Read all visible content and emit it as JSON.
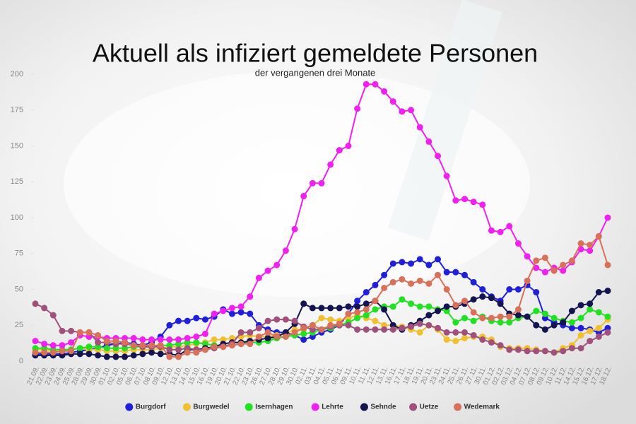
{
  "chart_data": {
    "type": "line",
    "title": "Aktuell als infiziert gemeldete Personen",
    "subtitle": "der vergangenen drei Monate",
    "categories": [
      "21.09.",
      "22.09.",
      "23.09.",
      "24.09.",
      "25.09.",
      "28.09.",
      "29.09.",
      "30.09.",
      "01.10.",
      "02.10.",
      "05.10.",
      "06.10.",
      "07.10.",
      "08.10.",
      "09.10.",
      "12.10.",
      "13.10.",
      "14.10.",
      "15.10.",
      "16.10.",
      "19.10.",
      "20.10.",
      "21.10.",
      "22.10.",
      "23.10.",
      "26.10.",
      "27.10.",
      "28.10.",
      "29.10.",
      "30.10.",
      "02.11.",
      "03.11.",
      "04.11.",
      "05.11.",
      "06.11.",
      "09.11.",
      "10.11.",
      "11.11.",
      "12.11.",
      "13.11.",
      "16.11.",
      "17.11.",
      "18.11.",
      "19.11.",
      "20.11.",
      "23.11.",
      "24.11.",
      "25.11.",
      "26.11.",
      "27.11.",
      "30.11.",
      "01.12.",
      "02.12.",
      "03.12.",
      "04.12.",
      "07.12.",
      "08.12.",
      "09.12.",
      "10.12.",
      "11.12.",
      "14.12.",
      "15.12.",
      "16.12.",
      "17.12.",
      "18.12."
    ],
    "series": [
      {
        "name": "Burgdorf",
        "color": "#1f1fdc",
        "values": [
          5,
          5,
          5,
          5,
          6,
          7,
          8,
          9,
          11,
          12,
          13,
          12,
          11,
          13,
          17,
          25,
          28,
          28,
          30,
          29,
          31,
          36,
          33,
          34,
          33,
          25,
          22,
          20,
          20,
          18,
          15,
          17,
          20,
          22,
          25,
          33,
          42,
          48,
          53,
          60,
          68,
          69,
          68,
          71,
          67,
          71,
          62,
          62,
          60,
          55,
          50,
          45,
          42,
          50,
          50,
          53,
          48,
          30,
          27,
          25,
          23,
          23,
          22,
          20,
          23
        ]
      },
      {
        "name": "Burgwedel",
        "color": "#f0c030",
        "values": [
          8,
          8,
          7,
          7,
          8,
          9,
          8,
          8,
          7,
          7,
          7,
          8,
          8,
          8,
          9,
          10,
          10,
          11,
          12,
          13,
          15,
          15,
          16,
          17,
          18,
          17,
          17,
          18,
          19,
          22,
          22,
          25,
          30,
          29,
          28,
          30,
          32,
          30,
          28,
          25,
          25,
          24,
          22,
          20,
          25,
          22,
          15,
          14,
          16,
          17,
          17,
          15,
          10,
          9,
          9,
          9,
          8,
          7,
          6,
          9,
          11,
          18,
          21,
          23,
          29
        ]
      },
      {
        "name": "Isernhagen",
        "color": "#22e022",
        "values": [
          9,
          9,
          8,
          8,
          8,
          9,
          10,
          10,
          9,
          9,
          9,
          10,
          10,
          10,
          11,
          11,
          12,
          13,
          13,
          12,
          11,
          11,
          11,
          12,
          13,
          13,
          14,
          16,
          17,
          18,
          19,
          20,
          22,
          23,
          25,
          27,
          30,
          32,
          36,
          38,
          38,
          43,
          40,
          38,
          38,
          36,
          35,
          27,
          30,
          28,
          31,
          28,
          27,
          27,
          30,
          31,
          35,
          33,
          30,
          28,
          27,
          30,
          36,
          34,
          31
        ]
      },
      {
        "name": "Lehrte",
        "color": "#f020f0",
        "values": [
          14,
          12,
          11,
          11,
          13,
          18,
          17,
          17,
          16,
          16,
          16,
          16,
          15,
          15,
          15,
          15,
          15,
          16,
          17,
          19,
          33,
          35,
          37,
          38,
          45,
          58,
          63,
          67,
          77,
          92,
          115,
          124,
          124,
          137,
          147,
          150,
          176,
          193,
          193,
          188,
          181,
          174,
          175,
          163,
          153,
          143,
          129,
          112,
          113,
          111,
          109,
          91,
          90,
          94,
          82,
          73,
          65,
          62,
          65,
          63,
          69,
          78,
          77,
          87,
          100
        ]
      },
      {
        "name": "Sehnde",
        "color": "#141450",
        "values": [
          4,
          4,
          4,
          4,
          5,
          5,
          5,
          4,
          3,
          3,
          3,
          4,
          5,
          6,
          5,
          5,
          4,
          8,
          8,
          9,
          10,
          12,
          13,
          13,
          14,
          15,
          16,
          17,
          20,
          26,
          40,
          37,
          37,
          37,
          37,
          38,
          38,
          40,
          42,
          36,
          25,
          22,
          25,
          28,
          32,
          35,
          38,
          38,
          40,
          43,
          45,
          44,
          40,
          33,
          32,
          31,
          25,
          22,
          25,
          27,
          35,
          39,
          40,
          48,
          49
        ]
      },
      {
        "name": "Uetze",
        "color": "#a0507a",
        "values": [
          40,
          37,
          32,
          21,
          21,
          20,
          20,
          13,
          13,
          12,
          12,
          11,
          10,
          10,
          10,
          8,
          8,
          9,
          8,
          8,
          9,
          10,
          12,
          20,
          20,
          23,
          28,
          29,
          29,
          28,
          24,
          22,
          22,
          24,
          25,
          25,
          22,
          22,
          22,
          22,
          22,
          23,
          24,
          26,
          25,
          23,
          20,
          20,
          20,
          18,
          15,
          13,
          11,
          8,
          8,
          7,
          7,
          7,
          6,
          7,
          9,
          9,
          14,
          17,
          20
        ]
      },
      {
        "name": "Wedemark",
        "color": "#d8705a",
        "values": [
          6,
          6,
          6,
          7,
          7,
          20,
          20,
          18,
          14,
          14,
          13,
          11,
          11,
          11,
          11,
          3,
          3,
          6,
          6,
          8,
          10,
          10,
          11,
          12,
          12,
          17,
          20,
          17,
          17,
          20,
          23,
          25,
          22,
          25,
          26,
          33,
          34,
          36,
          42,
          51,
          55,
          57,
          54,
          56,
          54,
          60,
          50,
          39,
          42,
          34,
          30,
          30,
          31,
          31,
          36,
          56,
          70,
          72,
          63,
          67,
          70,
          82,
          81,
          87,
          67
        ]
      }
    ],
    "ylim": [
      0,
      200
    ],
    "yticks": [
      0,
      25,
      50,
      75,
      100,
      125,
      150,
      175,
      200
    ],
    "legend": "bottom"
  }
}
